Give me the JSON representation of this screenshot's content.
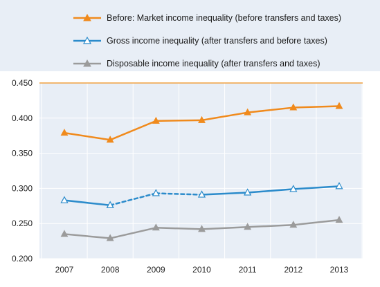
{
  "chart_data": {
    "type": "line",
    "title": "",
    "xlabel": "",
    "ylabel": "",
    "x": [
      "2007",
      "2008",
      "2009",
      "2010",
      "2011",
      "2012",
      "2013"
    ],
    "ylim": [
      0.2,
      0.45
    ],
    "yticks": [
      "0.200",
      "0.250",
      "0.300",
      "0.350",
      "0.400",
      "0.450"
    ],
    "grid": true,
    "legend_position": "top",
    "series": [
      {
        "name": "Before: Market income inequality (before transfers and taxes)",
        "values": [
          0.379,
          0.369,
          0.396,
          0.397,
          0.408,
          0.415,
          0.417
        ],
        "color": "#f08a1c",
        "marker": "filled-triangle",
        "dashed_segments": []
      },
      {
        "name": "Gross income inequality (after transfers and before taxes)",
        "values": [
          0.283,
          0.276,
          0.293,
          0.291,
          0.294,
          0.299,
          0.303
        ],
        "color": "#2b8bcb",
        "marker": "open-triangle",
        "dashed_segments": [
          1,
          2
        ]
      },
      {
        "name": "Disposable income inequality (after transfers and taxes)",
        "values": [
          0.235,
          0.229,
          0.244,
          0.242,
          0.245,
          0.248,
          0.255
        ],
        "color": "#9b9b9b",
        "marker": "filled-triangle",
        "dashed_segments": []
      }
    ],
    "top_reference_line_color": "#f0a040"
  }
}
